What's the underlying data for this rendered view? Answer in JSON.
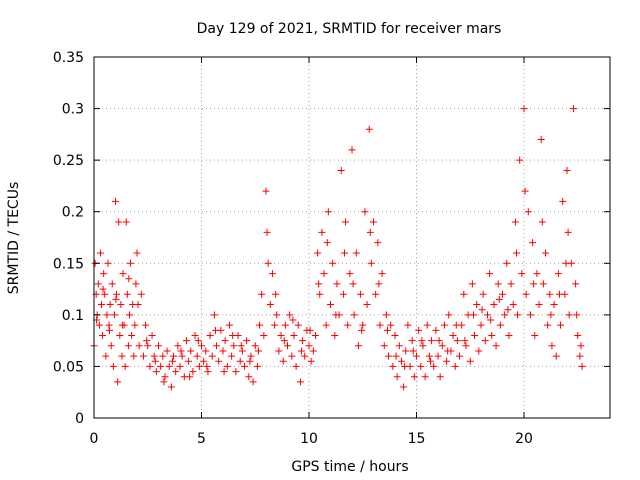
{
  "chart_data": {
    "type": "scatter",
    "title": "Day 129 of 2021, SRMTID for receiver mars",
    "xlabel": "GPS time / hours",
    "ylabel": "SRMTID / TECUs",
    "xlim": [
      0,
      24
    ],
    "ylim": [
      0,
      0.35
    ],
    "xticks": [
      0,
      5,
      10,
      15,
      20
    ],
    "xtick_labels": [
      "0",
      "5",
      "10",
      "15",
      "20"
    ],
    "yticks": [
      0,
      0.05,
      0.1,
      0.15,
      0.2,
      0.25,
      0.3,
      0.35
    ],
    "ytick_labels": [
      "0",
      "0.05",
      "0.1",
      "0.15",
      "0.2",
      "0.25",
      "0.3",
      "0.35"
    ],
    "grid": true,
    "marker": "+",
    "color": "#ff0000",
    "series": [
      {
        "name": "SRMTID",
        "points": [
          [
            0.0,
            0.07
          ],
          [
            0.05,
            0.15
          ],
          [
            0.1,
            0.12
          ],
          [
            0.15,
            0.1
          ],
          [
            0.2,
            0.13
          ],
          [
            0.25,
            0.09
          ],
          [
            0.3,
            0.16
          ],
          [
            0.35,
            0.11
          ],
          [
            0.4,
            0.08
          ],
          [
            0.45,
            0.14
          ],
          [
            0.5,
            0.12
          ],
          [
            0.55,
            0.06
          ],
          [
            0.6,
            0.1
          ],
          [
            0.65,
            0.15
          ],
          [
            0.7,
            0.09
          ],
          [
            0.75,
            0.11
          ],
          [
            0.8,
            0.07
          ],
          [
            0.85,
            0.13
          ],
          [
            0.9,
            0.05
          ],
          [
            0.95,
            0.1
          ],
          [
            1.0,
            0.21
          ],
          [
            1.05,
            0.12
          ],
          [
            1.1,
            0.035
          ],
          [
            1.15,
            0.19
          ],
          [
            1.2,
            0.08
          ],
          [
            1.25,
            0.11
          ],
          [
            1.3,
            0.06
          ],
          [
            1.35,
            0.14
          ],
          [
            1.4,
            0.09
          ],
          [
            1.45,
            0.05
          ],
          [
            1.5,
            0.19
          ],
          [
            1.55,
            0.12
          ],
          [
            1.6,
            0.07
          ],
          [
            1.65,
            0.1
          ],
          [
            1.7,
            0.15
          ],
          [
            1.75,
            0.08
          ],
          [
            1.8,
            0.11
          ],
          [
            1.85,
            0.06
          ],
          [
            1.9,
            0.09
          ],
          [
            1.95,
            0.13
          ],
          [
            2.0,
            0.16
          ],
          [
            2.1,
            0.07
          ],
          [
            2.2,
            0.12
          ],
          [
            2.3,
            0.06
          ],
          [
            2.4,
            0.09
          ],
          [
            2.5,
            0.07
          ],
          [
            2.6,
            0.05
          ],
          [
            2.7,
            0.08
          ],
          [
            2.8,
            0.06
          ],
          [
            2.9,
            0.045
          ],
          [
            3.0,
            0.07
          ],
          [
            3.1,
            0.05
          ],
          [
            3.2,
            0.06
          ],
          [
            3.3,
            0.04
          ],
          [
            3.4,
            0.065
          ],
          [
            3.5,
            0.05
          ],
          [
            3.6,
            0.03
          ],
          [
            3.7,
            0.06
          ],
          [
            3.8,
            0.045
          ],
          [
            3.9,
            0.07
          ],
          [
            4.0,
            0.05
          ],
          [
            4.1,
            0.06
          ],
          [
            4.2,
            0.04
          ],
          [
            4.3,
            0.075
          ],
          [
            4.4,
            0.055
          ],
          [
            4.5,
            0.065
          ],
          [
            4.6,
            0.045
          ],
          [
            4.7,
            0.08
          ],
          [
            4.8,
            0.06
          ],
          [
            4.9,
            0.05
          ],
          [
            5.0,
            0.07
          ],
          [
            5.1,
            0.055
          ],
          [
            5.2,
            0.065
          ],
          [
            5.3,
            0.045
          ],
          [
            5.4,
            0.08
          ],
          [
            5.5,
            0.06
          ],
          [
            5.6,
            0.1
          ],
          [
            5.7,
            0.07
          ],
          [
            5.8,
            0.055
          ],
          [
            5.9,
            0.085
          ],
          [
            6.0,
            0.065
          ],
          [
            6.1,
            0.075
          ],
          [
            6.2,
            0.05
          ],
          [
            6.3,
            0.09
          ],
          [
            6.4,
            0.06
          ],
          [
            6.5,
            0.07
          ],
          [
            6.6,
            0.045
          ],
          [
            6.7,
            0.08
          ],
          [
            6.8,
            0.055
          ],
          [
            6.9,
            0.065
          ],
          [
            7.0,
            0.05
          ],
          [
            7.1,
            0.075
          ],
          [
            7.2,
            0.04
          ],
          [
            7.3,
            0.06
          ],
          [
            7.4,
            0.035
          ],
          [
            7.5,
            0.07
          ],
          [
            7.6,
            0.05
          ],
          [
            7.7,
            0.09
          ],
          [
            7.8,
            0.12
          ],
          [
            7.9,
            0.08
          ],
          [
            8.0,
            0.22
          ],
          [
            8.1,
            0.15
          ],
          [
            8.2,
            0.11
          ],
          [
            8.3,
            0.14
          ],
          [
            8.4,
            0.09
          ],
          [
            8.5,
            0.1
          ],
          [
            8.6,
            0.065
          ],
          [
            8.7,
            0.08
          ],
          [
            8.8,
            0.055
          ],
          [
            8.9,
            0.09
          ],
          [
            9.0,
            0.07
          ],
          [
            9.1,
            0.1
          ],
          [
            9.2,
            0.06
          ],
          [
            9.3,
            0.08
          ],
          [
            9.4,
            0.05
          ],
          [
            9.5,
            0.09
          ],
          [
            9.6,
            0.035
          ],
          [
            9.7,
            0.075
          ],
          [
            9.8,
            0.06
          ],
          [
            9.9,
            0.085
          ],
          [
            10.0,
            0.07
          ],
          [
            10.1,
            0.055
          ],
          [
            10.2,
            0.065
          ],
          [
            10.3,
            0.08
          ],
          [
            10.4,
            0.16
          ],
          [
            10.5,
            0.12
          ],
          [
            10.6,
            0.18
          ],
          [
            10.7,
            0.14
          ],
          [
            10.8,
            0.09
          ],
          [
            10.9,
            0.2
          ],
          [
            11.0,
            0.11
          ],
          [
            11.1,
            0.15
          ],
          [
            11.2,
            0.08
          ],
          [
            11.3,
            0.13
          ],
          [
            11.4,
            0.1
          ],
          [
            11.5,
            0.24
          ],
          [
            11.6,
            0.12
          ],
          [
            11.7,
            0.19
          ],
          [
            11.8,
            0.09
          ],
          [
            11.9,
            0.14
          ],
          [
            12.0,
            0.26
          ],
          [
            12.1,
            0.1
          ],
          [
            12.2,
            0.16
          ],
          [
            12.3,
            0.07
          ],
          [
            12.4,
            0.12
          ],
          [
            12.5,
            0.09
          ],
          [
            12.6,
            0.2
          ],
          [
            12.7,
            0.11
          ],
          [
            12.8,
            0.28
          ],
          [
            12.9,
            0.15
          ],
          [
            13.0,
            0.19
          ],
          [
            13.1,
            0.12
          ],
          [
            13.2,
            0.17
          ],
          [
            13.3,
            0.09
          ],
          [
            13.4,
            0.14
          ],
          [
            13.5,
            0.07
          ],
          [
            13.6,
            0.1
          ],
          [
            13.7,
            0.06
          ],
          [
            13.8,
            0.09
          ],
          [
            13.9,
            0.05
          ],
          [
            14.0,
            0.08
          ],
          [
            14.1,
            0.04
          ],
          [
            14.2,
            0.07
          ],
          [
            14.3,
            0.055
          ],
          [
            14.4,
            0.03
          ],
          [
            14.5,
            0.065
          ],
          [
            14.6,
            0.09
          ],
          [
            14.7,
            0.05
          ],
          [
            14.8,
            0.075
          ],
          [
            14.9,
            0.04
          ],
          [
            15.0,
            0.06
          ],
          [
            15.1,
            0.085
          ],
          [
            15.2,
            0.05
          ],
          [
            15.3,
            0.07
          ],
          [
            15.4,
            0.04
          ],
          [
            15.5,
            0.09
          ],
          [
            15.6,
            0.06
          ],
          [
            15.7,
            0.075
          ],
          [
            15.8,
            0.05
          ],
          [
            15.9,
            0.085
          ],
          [
            16.0,
            0.06
          ],
          [
            16.1,
            0.04
          ],
          [
            16.2,
            0.07
          ],
          [
            16.3,
            0.09
          ],
          [
            16.4,
            0.055
          ],
          [
            16.5,
            0.1
          ],
          [
            16.6,
            0.065
          ],
          [
            16.7,
            0.08
          ],
          [
            16.8,
            0.05
          ],
          [
            16.9,
            0.075
          ],
          [
            17.0,
            0.06
          ],
          [
            17.1,
            0.09
          ],
          [
            17.2,
            0.12
          ],
          [
            17.3,
            0.07
          ],
          [
            17.4,
            0.1
          ],
          [
            17.5,
            0.055
          ],
          [
            17.6,
            0.13
          ],
          [
            17.7,
            0.08
          ],
          [
            17.8,
            0.11
          ],
          [
            17.9,
            0.065
          ],
          [
            18.0,
            0.09
          ],
          [
            18.1,
            0.12
          ],
          [
            18.2,
            0.075
          ],
          [
            18.3,
            0.1
          ],
          [
            18.4,
            0.14
          ],
          [
            18.5,
            0.08
          ],
          [
            18.6,
            0.11
          ],
          [
            18.7,
            0.07
          ],
          [
            18.8,
            0.13
          ],
          [
            18.9,
            0.09
          ],
          [
            19.0,
            0.12
          ],
          [
            19.1,
            0.1
          ],
          [
            19.2,
            0.15
          ],
          [
            19.3,
            0.08
          ],
          [
            19.4,
            0.13
          ],
          [
            19.5,
            0.11
          ],
          [
            19.6,
            0.19
          ],
          [
            19.7,
            0.1
          ],
          [
            19.8,
            0.25
          ],
          [
            19.9,
            0.14
          ],
          [
            20.0,
            0.3
          ],
          [
            20.1,
            0.12
          ],
          [
            20.2,
            0.2
          ],
          [
            20.3,
            0.1
          ],
          [
            20.4,
            0.17
          ],
          [
            20.5,
            0.08
          ],
          [
            20.6,
            0.14
          ],
          [
            20.7,
            0.11
          ],
          [
            20.8,
            0.27
          ],
          [
            20.9,
            0.13
          ],
          [
            21.0,
            0.16
          ],
          [
            21.1,
            0.09
          ],
          [
            21.2,
            0.12
          ],
          [
            21.3,
            0.07
          ],
          [
            21.4,
            0.11
          ],
          [
            21.5,
            0.06
          ],
          [
            21.6,
            0.14
          ],
          [
            21.7,
            0.09
          ],
          [
            21.8,
            0.21
          ],
          [
            21.9,
            0.12
          ],
          [
            22.0,
            0.24
          ],
          [
            22.1,
            0.1
          ],
          [
            22.2,
            0.15
          ],
          [
            22.3,
            0.3
          ],
          [
            22.4,
            0.13
          ],
          [
            22.5,
            0.08
          ],
          [
            22.6,
            0.06
          ],
          [
            22.7,
            0.05
          ],
          [
            0.12,
            0.095
          ],
          [
            0.42,
            0.125
          ],
          [
            0.72,
            0.085
          ],
          [
            1.02,
            0.115
          ],
          [
            1.32,
            0.09
          ],
          [
            1.62,
            0.135
          ],
          [
            2.05,
            0.11
          ],
          [
            2.45,
            0.075
          ],
          [
            2.85,
            0.055
          ],
          [
            3.25,
            0.035
          ],
          [
            3.65,
            0.055
          ],
          [
            4.05,
            0.065
          ],
          [
            4.45,
            0.04
          ],
          [
            4.85,
            0.075
          ],
          [
            5.25,
            0.05
          ],
          [
            5.65,
            0.085
          ],
          [
            6.05,
            0.045
          ],
          [
            6.45,
            0.08
          ],
          [
            6.85,
            0.07
          ],
          [
            7.25,
            0.055
          ],
          [
            7.65,
            0.065
          ],
          [
            8.05,
            0.18
          ],
          [
            8.45,
            0.12
          ],
          [
            8.85,
            0.075
          ],
          [
            9.25,
            0.095
          ],
          [
            9.65,
            0.065
          ],
          [
            10.05,
            0.085
          ],
          [
            10.45,
            0.13
          ],
          [
            10.85,
            0.17
          ],
          [
            11.25,
            0.1
          ],
          [
            11.65,
            0.16
          ],
          [
            12.05,
            0.13
          ],
          [
            12.45,
            0.085
          ],
          [
            12.85,
            0.18
          ],
          [
            13.25,
            0.13
          ],
          [
            13.65,
            0.085
          ],
          [
            14.05,
            0.06
          ],
          [
            14.45,
            0.05
          ],
          [
            14.85,
            0.065
          ],
          [
            15.25,
            0.075
          ],
          [
            15.65,
            0.055
          ],
          [
            16.05,
            0.075
          ],
          [
            16.45,
            0.065
          ],
          [
            16.85,
            0.09
          ],
          [
            17.25,
            0.075
          ],
          [
            17.65,
            0.1
          ],
          [
            18.05,
            0.105
          ],
          [
            18.45,
            0.095
          ],
          [
            18.85,
            0.115
          ],
          [
            19.25,
            0.105
          ],
          [
            19.65,
            0.16
          ],
          [
            20.05,
            0.22
          ],
          [
            20.45,
            0.13
          ],
          [
            20.85,
            0.19
          ],
          [
            21.25,
            0.1
          ],
          [
            21.65,
            0.12
          ],
          [
            22.05,
            0.18
          ],
          [
            22.45,
            0.1
          ],
          [
            22.65,
            0.07
          ],
          [
            21.95,
            0.15
          ]
        ]
      }
    ]
  }
}
